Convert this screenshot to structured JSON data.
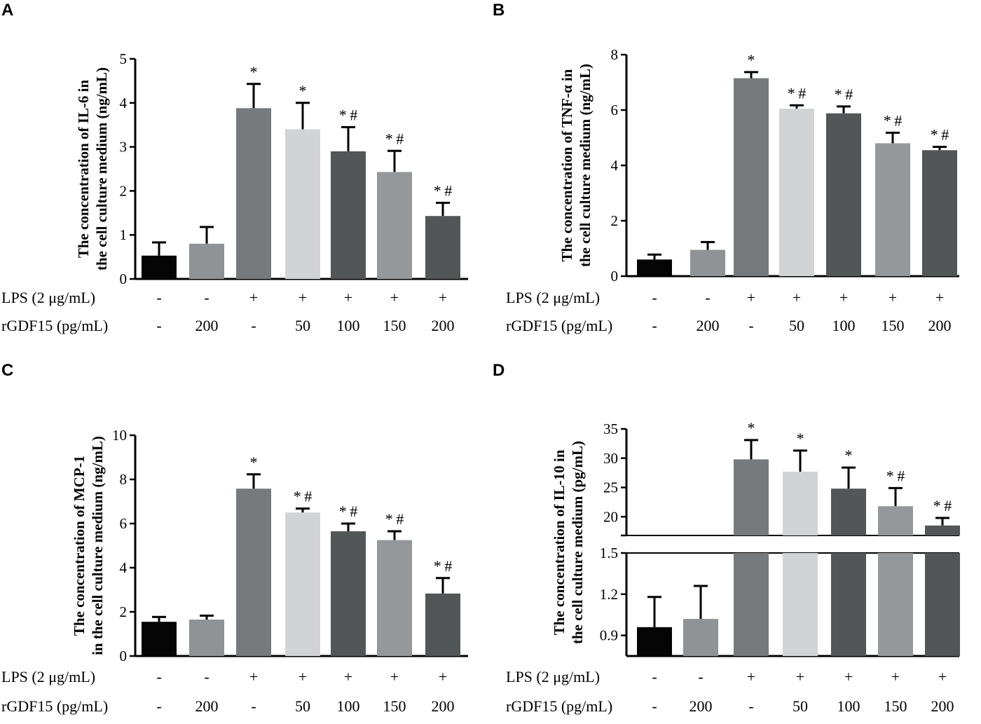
{
  "conditions": {
    "lps_label": "LPS (2 μg/mL)",
    "rgdf_label": "rGDF15 (pg/mL)",
    "lps": [
      "-",
      "-",
      "+",
      "+",
      "+",
      "+",
      "+"
    ],
    "rgdf": [
      "-",
      "200",
      "-",
      "50",
      "100",
      "150",
      "200"
    ]
  },
  "bar_colors": [
    "#050505",
    "#8f9396",
    "#767a7c",
    "#d2d3d4",
    "#535657",
    "#95989b",
    "#535657"
  ],
  "chart_data": [
    {
      "panel": "A",
      "type": "bar",
      "ylabel_lines": [
        "The concentration of IL-6 in",
        "the cell culture medium (ng/mL)"
      ],
      "ylim": [
        0,
        5
      ],
      "yticks": [
        0,
        1,
        2,
        3,
        4,
        5
      ],
      "values": [
        0.53,
        0.8,
        3.88,
        3.4,
        2.9,
        2.43,
        1.43
      ],
      "errors": [
        0.3,
        0.38,
        0.55,
        0.6,
        0.55,
        0.48,
        0.3
      ],
      "significance": [
        "",
        "",
        "*",
        "*",
        "*#",
        "*#",
        "*#"
      ]
    },
    {
      "panel": "B",
      "type": "bar",
      "ylabel_lines": [
        "The concentration of TNF-α in",
        "the cell culture medium (ng/mL)"
      ],
      "ylim": [
        0,
        8
      ],
      "yticks": [
        0,
        2,
        4,
        6,
        8
      ],
      "values": [
        0.6,
        0.95,
        7.15,
        6.05,
        5.88,
        4.8,
        4.55
      ],
      "errors": [
        0.18,
        0.28,
        0.22,
        0.12,
        0.25,
        0.38,
        0.12
      ],
      "significance": [
        "",
        "",
        "*",
        "*#",
        "*#",
        "*#",
        "*#"
      ]
    },
    {
      "panel": "C",
      "type": "bar",
      "ylabel_lines": [
        "The concentration of MCP-1",
        "in the cell culture medium (ng/mL)"
      ],
      "ylim": [
        0,
        10
      ],
      "yticks": [
        0,
        2,
        4,
        6,
        8,
        10
      ],
      "values": [
        1.55,
        1.65,
        7.58,
        6.5,
        5.65,
        5.25,
        2.83
      ],
      "errors": [
        0.22,
        0.18,
        0.65,
        0.18,
        0.35,
        0.4,
        0.7
      ],
      "significance": [
        "",
        "",
        "*",
        "*#",
        "*#",
        "*#",
        "*#"
      ]
    },
    {
      "panel": "D",
      "type": "bar",
      "ylabel_lines": [
        "The concentration of IL-10 in",
        "the cell culture medium (pg/mL)"
      ],
      "broken_axis": true,
      "lower_ylim": [
        0.75,
        1.5
      ],
      "lower_yticks": [
        "0.9",
        "1.2",
        "1.5"
      ],
      "upper_ylim": [
        16.8,
        35
      ],
      "upper_yticks": [
        "20",
        "25",
        "30",
        "35"
      ],
      "values": [
        0.96,
        1.02,
        29.8,
        27.7,
        24.8,
        21.8,
        18.5
      ],
      "errors": [
        0.22,
        0.24,
        3.3,
        3.6,
        3.6,
        3.1,
        1.3
      ],
      "significance": [
        "",
        "",
        "*",
        "*",
        "*",
        "*#",
        "*#"
      ]
    }
  ]
}
